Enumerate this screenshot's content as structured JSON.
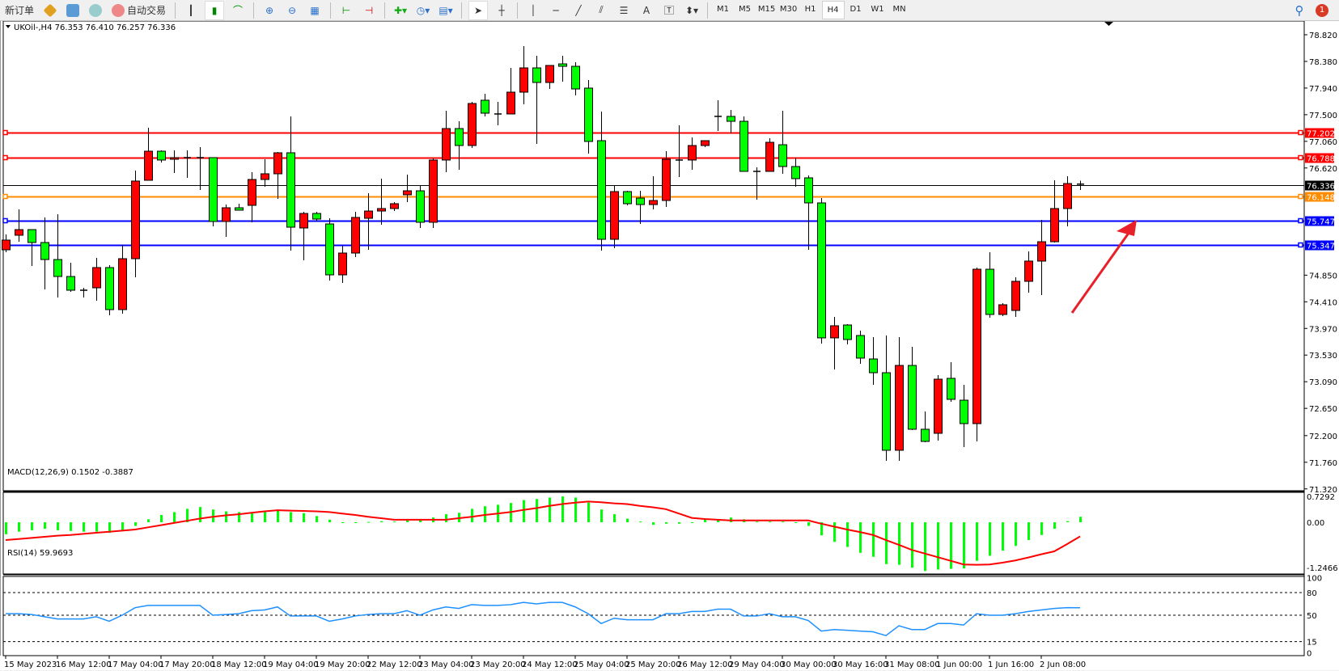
{
  "toolbar": {
    "new_order_label": "新订单",
    "auto_trading_label": "自动交易",
    "timeframes": [
      "M1",
      "M5",
      "M15",
      "M30",
      "H1",
      "H4",
      "D1",
      "W1",
      "MN"
    ],
    "active_timeframe": "H4",
    "notification_count": "1",
    "text_tool_label": "A"
  },
  "chart": {
    "header": "UKOil-,H4  76.353 76.410 76.257 76.336",
    "macd_label": "MACD(12,26,9) 0.1502 -0.3887",
    "rsi_label": "RSI(14) 59.9693"
  },
  "chart_data": {
    "type": "candlestick",
    "symbol": "UKOil-",
    "timeframe": "H4",
    "up_color": "#ff0000",
    "down_color": "#00ff00",
    "ylim": [
      71.32,
      78.82
    ],
    "price_ticks": [
      "78.820",
      "78.380",
      "77.940",
      "77.500",
      "77.060",
      "76.620",
      "74.850",
      "74.410",
      "73.970",
      "73.530",
      "73.090",
      "72.650",
      "72.200",
      "71.760",
      "71.320"
    ],
    "time_labels": [
      "15 May 2023",
      "16 May 12:00",
      "17 May 04:00",
      "17 May 20:00",
      "18 May 12:00",
      "19 May 04:00",
      "19 May 20:00",
      "22 May 12:00",
      "23 May 04:00",
      "23 May 20:00",
      "24 May 12:00",
      "25 May 04:00",
      "25 May 20:00",
      "26 May 12:00",
      "29 May 04:00",
      "30 May 00:00",
      "30 May 16:00",
      "31 May 08:00",
      "1 Jun 00:00",
      "1 Jun 16:00",
      "2 Jun 08:00"
    ],
    "ohlc": [
      [
        75.269,
        75.522,
        75.229,
        75.429
      ],
      [
        75.509,
        75.936,
        75.402,
        75.602
      ],
      [
        75.602,
        75.602,
        75.002,
        75.389
      ],
      [
        75.389,
        75.803,
        74.615,
        75.108
      ],
      [
        75.108,
        75.856,
        74.481,
        74.828
      ],
      [
        74.828,
        75.055,
        74.574,
        74.601
      ],
      [
        74.601,
        74.641,
        74.481,
        74.601
      ],
      [
        74.641,
        75.135,
        74.428,
        74.975
      ],
      [
        74.975,
        75.015,
        74.187,
        74.281
      ],
      [
        74.281,
        75.349,
        74.214,
        75.122
      ],
      [
        75.122,
        76.577,
        74.815,
        76.404
      ],
      [
        76.417,
        77.285,
        76.417,
        76.897
      ],
      [
        76.897,
        76.911,
        76.711,
        76.751
      ],
      [
        76.764,
        76.911,
        76.537,
        76.791
      ],
      [
        76.791,
        76.911,
        76.457,
        76.791
      ],
      [
        76.791,
        76.964,
        76.257,
        76.791
      ],
      [
        76.791,
        76.791,
        75.656,
        75.736
      ],
      [
        75.736,
        76.016,
        75.482,
        75.963
      ],
      [
        75.963,
        76.03,
        75.923,
        75.923
      ],
      [
        76.003,
        76.55,
        75.723,
        76.43
      ],
      [
        76.43,
        76.764,
        76.31,
        76.524
      ],
      [
        76.524,
        76.884,
        76.11,
        76.871
      ],
      [
        76.871,
        77.472,
        75.255,
        75.642
      ],
      [
        75.629,
        75.896,
        75.095,
        75.869
      ],
      [
        75.869,
        75.896,
        75.736,
        75.776
      ],
      [
        75.696,
        75.789,
        74.761,
        74.855
      ],
      [
        74.855,
        75.335,
        74.722,
        75.215
      ],
      [
        75.215,
        75.896,
        75.149,
        75.803
      ],
      [
        75.789,
        76.203,
        75.269,
        75.909
      ],
      [
        75.909,
        76.444,
        75.683,
        75.95
      ],
      [
        75.95,
        76.056,
        75.909,
        76.03
      ],
      [
        76.177,
        76.51,
        76.056,
        76.243
      ],
      [
        76.243,
        76.323,
        75.629,
        75.723
      ],
      [
        75.723,
        76.777,
        75.629,
        76.751
      ],
      [
        76.751,
        77.565,
        76.55,
        77.271
      ],
      [
        77.271,
        77.391,
        76.59,
        76.991
      ],
      [
        76.991,
        77.712,
        76.951,
        77.685
      ],
      [
        77.739,
        77.845,
        77.472,
        77.525
      ],
      [
        77.512,
        77.712,
        77.325,
        77.512
      ],
      [
        77.512,
        78.273,
        77.512,
        77.872
      ],
      [
        77.872,
        78.633,
        77.672,
        78.273
      ],
      [
        78.273,
        78.473,
        77.018,
        78.032
      ],
      [
        78.032,
        78.313,
        77.925,
        78.313
      ],
      [
        78.339,
        78.473,
        78.046,
        78.299
      ],
      [
        78.299,
        78.366,
        77.819,
        77.925
      ],
      [
        77.939,
        78.072,
        76.857,
        77.058
      ],
      [
        77.071,
        77.552,
        75.255,
        75.442
      ],
      [
        75.442,
        76.323,
        75.295,
        76.23
      ],
      [
        76.23,
        76.243,
        76.003,
        76.03
      ],
      [
        76.123,
        76.243,
        75.696,
        76.016
      ],
      [
        76.016,
        76.484,
        75.936,
        76.083
      ],
      [
        76.083,
        76.897,
        75.976,
        76.764
      ],
      [
        76.751,
        77.325,
        76.47,
        76.751
      ],
      [
        76.751,
        77.124,
        76.59,
        76.991
      ],
      [
        76.991,
        77.071,
        76.964,
        77.071
      ],
      [
        77.458,
        77.739,
        77.231,
        77.472
      ],
      [
        77.472,
        77.578,
        77.191,
        77.391
      ],
      [
        77.391,
        77.472,
        76.564,
        76.564
      ],
      [
        76.564,
        76.63,
        76.096,
        76.564
      ],
      [
        76.564,
        77.111,
        76.564,
        77.044
      ],
      [
        77.004,
        77.565,
        76.524,
        76.644
      ],
      [
        76.644,
        76.791,
        76.31,
        76.444
      ],
      [
        76.457,
        76.497,
        75.269,
        76.043
      ],
      [
        76.043,
        76.123,
        73.72,
        73.814
      ],
      [
        73.814,
        74.16,
        73.293,
        74.014
      ],
      [
        74.027,
        74.04,
        73.707,
        73.787
      ],
      [
        73.853,
        73.934,
        73.386,
        73.48
      ],
      [
        73.466,
        73.827,
        73.039,
        73.239
      ],
      [
        73.239,
        73.853,
        71.784,
        71.958
      ],
      [
        71.958,
        73.827,
        71.784,
        73.359
      ],
      [
        73.359,
        73.667,
        72.291,
        72.305
      ],
      [
        72.305,
        72.598,
        72.091,
        72.104
      ],
      [
        72.238,
        73.199,
        72.118,
        73.132
      ],
      [
        73.146,
        73.413,
        72.759,
        72.799
      ],
      [
        72.785,
        73.039,
        72.011,
        72.398
      ],
      [
        72.398,
        74.975,
        72.104,
        74.948
      ],
      [
        74.948,
        75.229,
        74.147,
        74.201
      ],
      [
        74.201,
        74.387,
        74.174,
        74.361
      ],
      [
        74.267,
        74.815,
        74.16,
        74.748
      ],
      [
        74.748,
        75.242,
        74.561,
        75.082
      ],
      [
        75.082,
        75.763,
        74.521,
        75.402
      ],
      [
        75.402,
        76.417,
        75.389,
        75.95
      ],
      [
        75.95,
        76.484,
        75.656,
        76.363
      ],
      [
        76.353,
        76.41,
        76.257,
        76.336
      ]
    ],
    "levels": [
      {
        "price": "77.202",
        "color": "#ff0000"
      },
      {
        "price": "76.788",
        "color": "#ff0000"
      },
      {
        "price": "76.336",
        "color": "#000000"
      },
      {
        "price": "76.148",
        "color": "#ff8c00"
      },
      {
        "price": "75.747",
        "color": "#0000ff"
      },
      {
        "price": "75.347",
        "color": "#0000ff"
      }
    ],
    "macd": {
      "ticks": [
        "0.7292",
        "0.00",
        "-1.2466"
      ],
      "ylim": [
        -1.4,
        0.78
      ],
      "histogram_color": "#00ff00",
      "signal_color": "#ff0000",
      "histogram": [
        -0.33,
        -0.26,
        -0.22,
        -0.18,
        -0.22,
        -0.24,
        -0.26,
        -0.26,
        -0.29,
        -0.21,
        -0.1,
        0.08,
        0.2,
        0.28,
        0.37,
        0.42,
        0.35,
        0.3,
        0.28,
        0.27,
        0.32,
        0.34,
        0.28,
        0.25,
        0.17,
        0.07,
        -0.02,
        -0.02,
        0.01,
        0.03,
        0.02,
        0.05,
        0.06,
        0.13,
        0.22,
        0.26,
        0.37,
        0.44,
        0.48,
        0.53,
        0.61,
        0.64,
        0.68,
        0.71,
        0.68,
        0.54,
        0.35,
        0.22,
        0.1,
        0.02,
        -0.07,
        -0.04,
        -0.04,
        -0.02,
        0.07,
        0.08,
        0.13,
        0.08,
        0.02,
        0.02,
        0.02,
        -0.02,
        -0.1,
        -0.36,
        -0.54,
        -0.68,
        -0.84,
        -0.95,
        -1.15,
        -1.17,
        -1.25,
        -1.34,
        -1.3,
        -1.28,
        -1.27,
        -1.06,
        -0.92,
        -0.78,
        -0.65,
        -0.49,
        -0.35,
        -0.18,
        0.03,
        0.1502
      ],
      "signal": [
        -0.49,
        -0.46,
        -0.43,
        -0.4,
        -0.37,
        -0.35,
        -0.32,
        -0.29,
        -0.26,
        -0.23,
        -0.2,
        -0.14,
        -0.08,
        -0.02,
        0.04,
        0.1,
        0.15,
        0.19,
        0.22,
        0.26,
        0.3,
        0.33,
        0.32,
        0.31,
        0.3,
        0.28,
        0.24,
        0.2,
        0.15,
        0.11,
        0.07,
        0.07,
        0.07,
        0.07,
        0.07,
        0.11,
        0.15,
        0.2,
        0.24,
        0.28,
        0.34,
        0.39,
        0.45,
        0.5,
        0.54,
        0.57,
        0.55,
        0.52,
        0.5,
        0.45,
        0.41,
        0.36,
        0.24,
        0.12,
        0.09,
        0.07,
        0.05,
        0.05,
        0.05,
        0.05,
        0.05,
        0.05,
        0.05,
        -0.04,
        -0.12,
        -0.2,
        -0.27,
        -0.35,
        -0.49,
        -0.62,
        -0.76,
        -0.86,
        -0.96,
        -1.06,
        -1.16,
        -1.17,
        -1.16,
        -1.11,
        -1.05,
        -0.97,
        -0.88,
        -0.8,
        -0.6,
        -0.3887
      ]
    },
    "rsi": {
      "ticks": [
        "100",
        "80",
        "50",
        "15",
        "0"
      ],
      "levels": [
        80,
        50,
        15
      ],
      "color": "#1e90ff",
      "values": [
        52,
        52,
        51,
        48,
        45,
        45,
        45,
        48,
        42,
        50,
        60,
        63,
        63,
        63,
        63,
        63,
        50,
        51,
        52,
        56,
        57,
        61,
        49,
        49,
        49,
        42,
        45,
        49,
        51,
        52,
        52,
        56,
        50,
        57,
        61,
        59,
        64,
        63,
        63,
        64,
        67,
        65,
        67,
        67,
        61,
        52,
        39,
        46,
        44,
        44,
        44,
        52,
        52,
        55,
        55,
        58,
        58,
        49,
        49,
        52,
        48,
        48,
        43,
        29,
        31,
        30,
        29,
        28,
        23,
        36,
        31,
        31,
        39,
        39,
        37,
        52,
        50,
        50,
        52,
        55,
        57,
        59,
        60,
        59.9693
      ]
    }
  }
}
